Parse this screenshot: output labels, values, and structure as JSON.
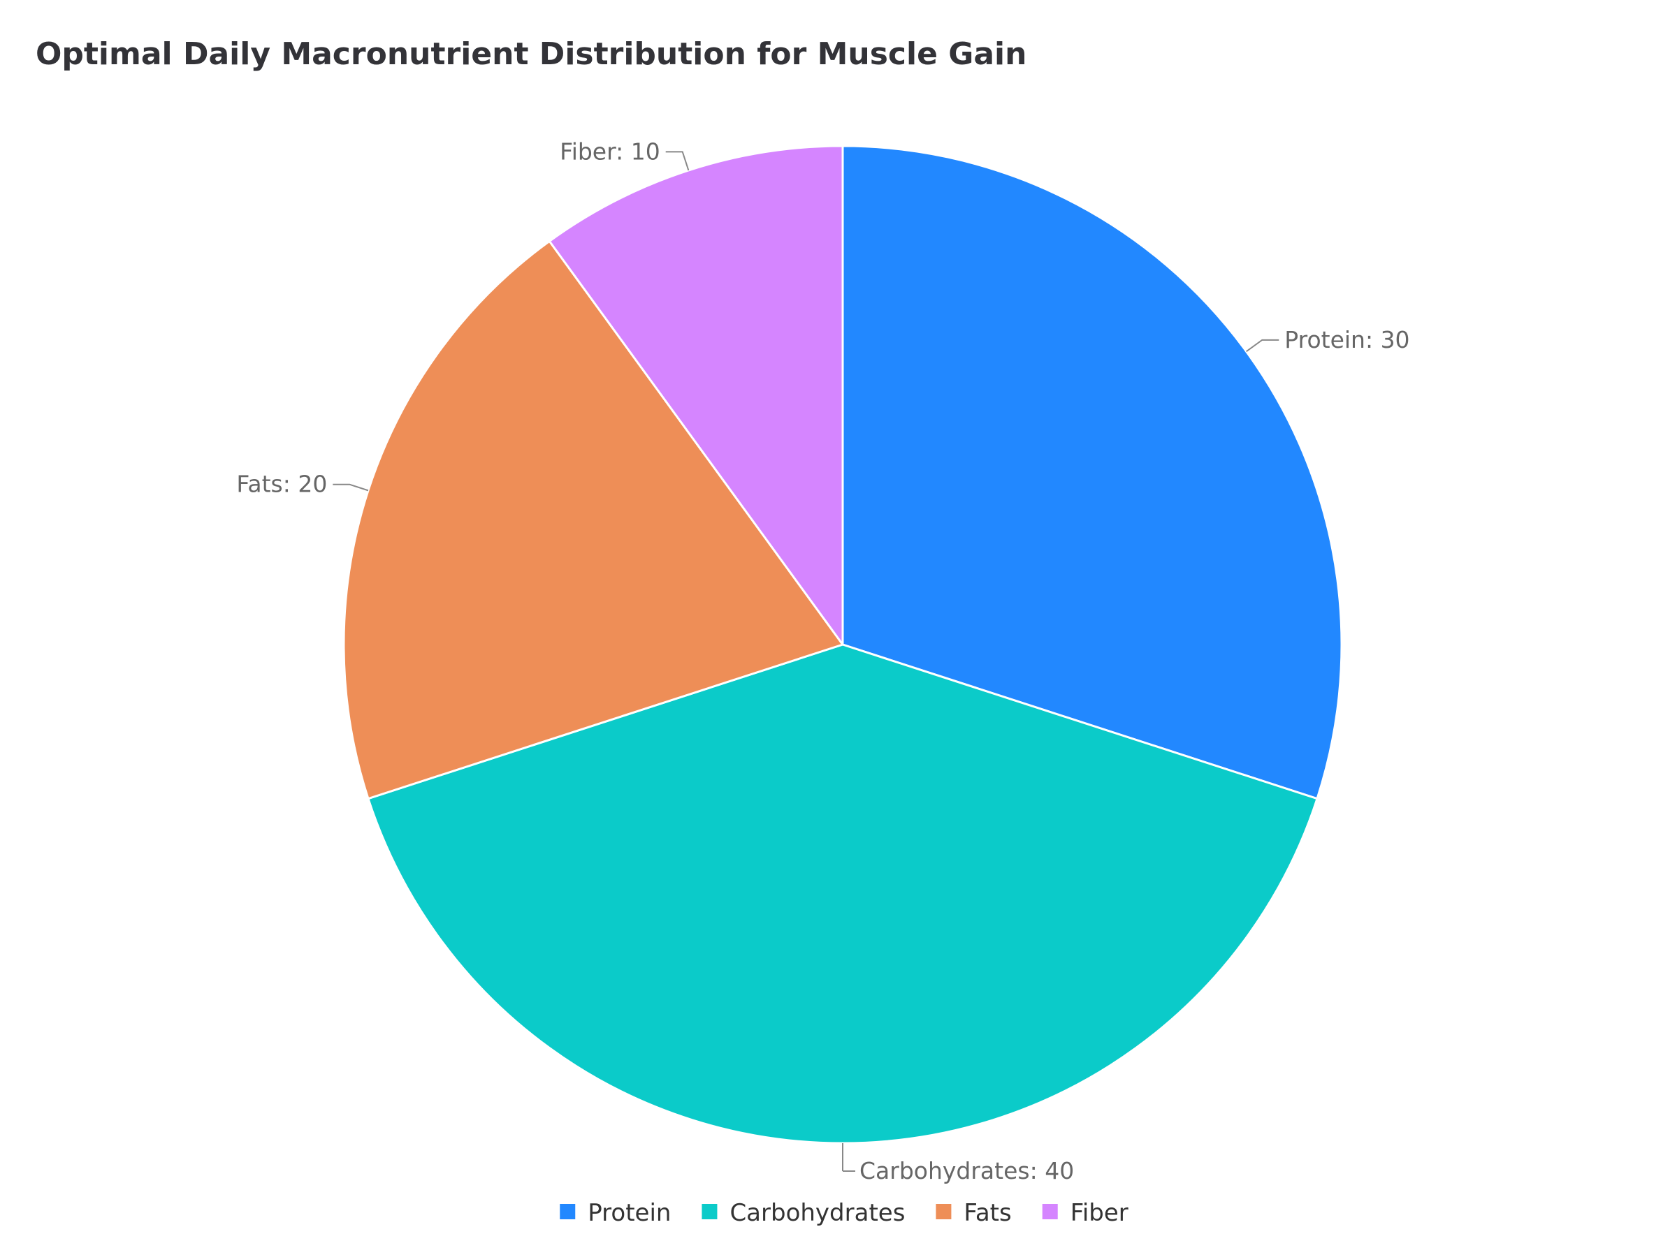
{
  "chart_data": {
    "type": "pie",
    "title": "Optimal Daily Macronutrient Distribution for Muscle Gain",
    "categories": [
      "Protein",
      "Carbohydrates",
      "Fats",
      "Fiber"
    ],
    "values": [
      30,
      40,
      20,
      10
    ],
    "colors": [
      "#2288ff",
      "#0bcbc9",
      "#ee8e57",
      "#d585ff"
    ],
    "data_labels": [
      "Protein: 30",
      "Carbohydrates: 40",
      "Fats: 20",
      "Fiber: 10"
    ],
    "start_angle": "top",
    "direction": "clockwise",
    "legend": "bottom-center"
  }
}
